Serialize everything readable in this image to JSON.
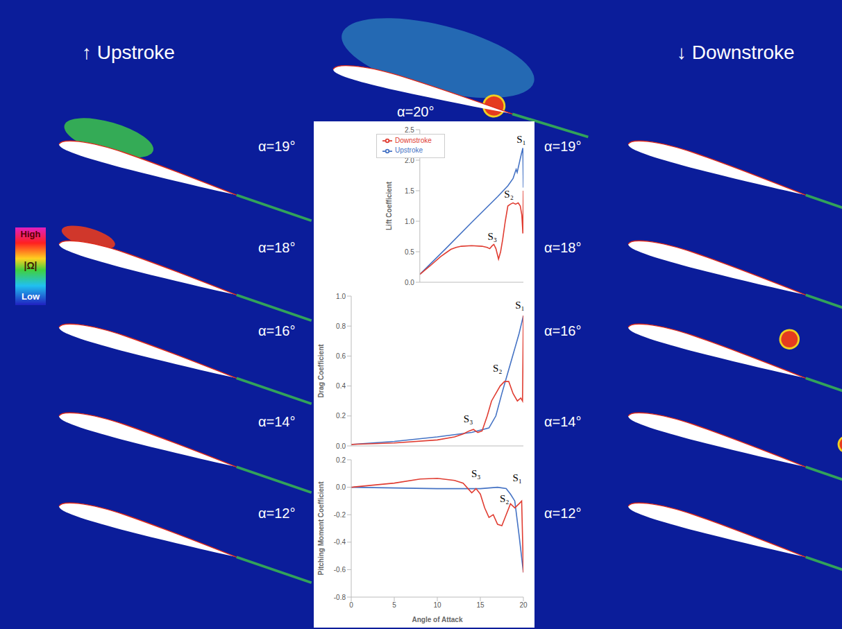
{
  "chart_data": [
    {
      "type": "line",
      "y_label": "Lift Coefficient",
      "xlim": [
        0,
        20
      ],
      "xticks": [
        0,
        5,
        10,
        15,
        20
      ],
      "ylim": [
        0,
        2.5
      ],
      "yticks": [
        {
          "value": 0,
          "label": "0.0"
        },
        {
          "value": 0.5,
          "label": "0.5"
        },
        {
          "value": 1,
          "label": "1.0"
        },
        {
          "value": 1.5,
          "label": "1.5"
        },
        {
          "value": 2,
          "label": "2.0"
        },
        {
          "value": 2.5,
          "label": "2.5"
        }
      ],
      "tick_labels": "y",
      "grid": false,
      "legend": "upper left",
      "series": [
        {
          "name": "Upstroke",
          "color": "#4472c4",
          "x": [
            0,
            5,
            10,
            15,
            17,
            18,
            18.4,
            18.6,
            18.8,
            19.2,
            19.6,
            19.9,
            20
          ],
          "values": [
            0.13,
            0.55,
            0.98,
            1.4,
            1.58,
            1.7,
            1.8,
            1.85,
            1.8,
            1.95,
            2.1,
            2.2,
            1.55
          ]
        },
        {
          "name": "Downstroke",
          "color": "#e03c31",
          "x": [
            0,
            2,
            4,
            5,
            6,
            7,
            8,
            10,
            12,
            13,
            13.5,
            14,
            14.3,
            14.7,
            15.2,
            15.6,
            16,
            16.5,
            17,
            17.5,
            18,
            18.5,
            19,
            19.4,
            19.7,
            19.9,
            20
          ],
          "values": [
            0.13,
            0.27,
            0.42,
            0.48,
            0.54,
            0.57,
            0.59,
            0.6,
            0.59,
            0.57,
            0.55,
            0.6,
            0.62,
            0.55,
            0.38,
            0.5,
            0.7,
            1.0,
            1.25,
            1.28,
            1.3,
            1.28,
            1.3,
            1.25,
            1.1,
            0.8,
            1.5
          ]
        }
      ],
      "annotations": [
        {
          "text": "S₁",
          "x": 19.6,
          "y": 2.35
        },
        {
          "text": "S₂",
          "x": 17.2,
          "y": 1.45
        },
        {
          "text": "S₃",
          "x": 14,
          "y": 0.75
        }
      ]
    },
    {
      "type": "line",
      "y_label": "Drag Coefficient",
      "xlim": [
        0,
        20
      ],
      "xticks": [
        0,
        5,
        10,
        15,
        20
      ],
      "ylim": [
        0,
        1
      ],
      "yticks": [
        {
          "value": 0,
          "label": "0.0"
        },
        {
          "value": 0.2,
          "label": "0.2"
        },
        {
          "value": 0.4,
          "label": "0.4"
        },
        {
          "value": 0.6,
          "label": "0.6"
        },
        {
          "value": 0.8,
          "label": "0.8"
        },
        {
          "value": 1,
          "label": "1.0"
        }
      ],
      "tick_labels": "y",
      "grid": false,
      "series": [
        {
          "color": "#4472c4",
          "x": [
            0,
            5,
            10,
            14,
            16,
            16.8,
            17.5,
            18,
            18.5,
            19,
            19.5,
            20
          ],
          "values": [
            0.01,
            0.03,
            0.06,
            0.09,
            0.12,
            0.2,
            0.35,
            0.45,
            0.55,
            0.65,
            0.75,
            0.87
          ]
        },
        {
          "color": "#e03c31",
          "x": [
            0,
            5,
            10,
            12,
            13,
            13.7,
            14.2,
            14.7,
            15.2,
            15.8,
            16.3,
            16.8,
            17.3,
            17.8,
            18.3,
            18.8,
            19.3,
            19.7,
            19.9,
            20
          ],
          "values": [
            0.01,
            0.02,
            0.04,
            0.06,
            0.08,
            0.1,
            0.11,
            0.09,
            0.1,
            0.2,
            0.3,
            0.35,
            0.4,
            0.43,
            0.43,
            0.35,
            0.3,
            0.32,
            0.3,
            0.87
          ]
        }
      ],
      "annotations": [
        {
          "text": "S₁",
          "x": 19.6,
          "y": 0.94
        },
        {
          "text": "S₂",
          "x": 17,
          "y": 0.52
        },
        {
          "text": "S₃",
          "x": 13.6,
          "y": 0.18
        }
      ]
    },
    {
      "type": "line",
      "y_label": "Pitching Moment Coefficient",
      "x_label": "Angle of Attack",
      "xlim": [
        0,
        20
      ],
      "xticks": [
        0,
        5,
        10,
        15,
        20
      ],
      "ylim": [
        -0.8,
        0.2
      ],
      "yticks": [
        {
          "value": -0.8,
          "label": "-0.8"
        },
        {
          "value": -0.6,
          "label": "-0.6"
        },
        {
          "value": -0.4,
          "label": "-0.4"
        },
        {
          "value": -0.2,
          "label": "-0.2"
        },
        {
          "value": 0,
          "label": "0.0"
        },
        {
          "value": 0.2,
          "label": "0.2"
        }
      ],
      "grid": false,
      "series": [
        {
          "color": "#4472c4",
          "x": [
            0,
            10,
            15,
            17,
            18,
            18.5,
            19,
            19.5,
            20
          ],
          "values": [
            0,
            -0.01,
            -0.01,
            0,
            -0.01,
            -0.05,
            -0.1,
            -0.35,
            -0.62
          ]
        },
        {
          "color": "#e03c31",
          "x": [
            0,
            5,
            8,
            10,
            12,
            13,
            14,
            14.5,
            15,
            15.5,
            16,
            16.5,
            17,
            17.5,
            18,
            18.5,
            19,
            19.5,
            19.8,
            20
          ],
          "values": [
            0,
            0.03,
            0.06,
            0.065,
            0.05,
            0.03,
            -0.04,
            -0.01,
            -0.05,
            -0.15,
            -0.22,
            -0.2,
            -0.27,
            -0.28,
            -0.2,
            -0.12,
            -0.15,
            -0.12,
            -0.1,
            -0.62
          ]
        }
      ],
      "annotations": [
        {
          "text": "S₃",
          "x": 14.5,
          "y": 0.1
        },
        {
          "text": "S₁",
          "x": 19.3,
          "y": 0.07
        },
        {
          "text": "S₂",
          "x": 17.8,
          "y": -0.08
        }
      ]
    }
  ],
  "figure": {
    "upstroke_title": "↑ Upstroke",
    "downstroke_title": "↓ Downstroke",
    "top_label": "α=20°",
    "upstroke_labels": [
      "α=19°",
      "α=18°",
      "α=16°",
      "α=14°",
      "α=12°"
    ],
    "downstroke_labels": [
      "α=19°",
      "α=18°",
      "α=16°",
      "α=14°",
      "α=12°"
    ],
    "colorbar": {
      "top": "High",
      "middle": "|Ω|",
      "bottom": "Low"
    }
  }
}
